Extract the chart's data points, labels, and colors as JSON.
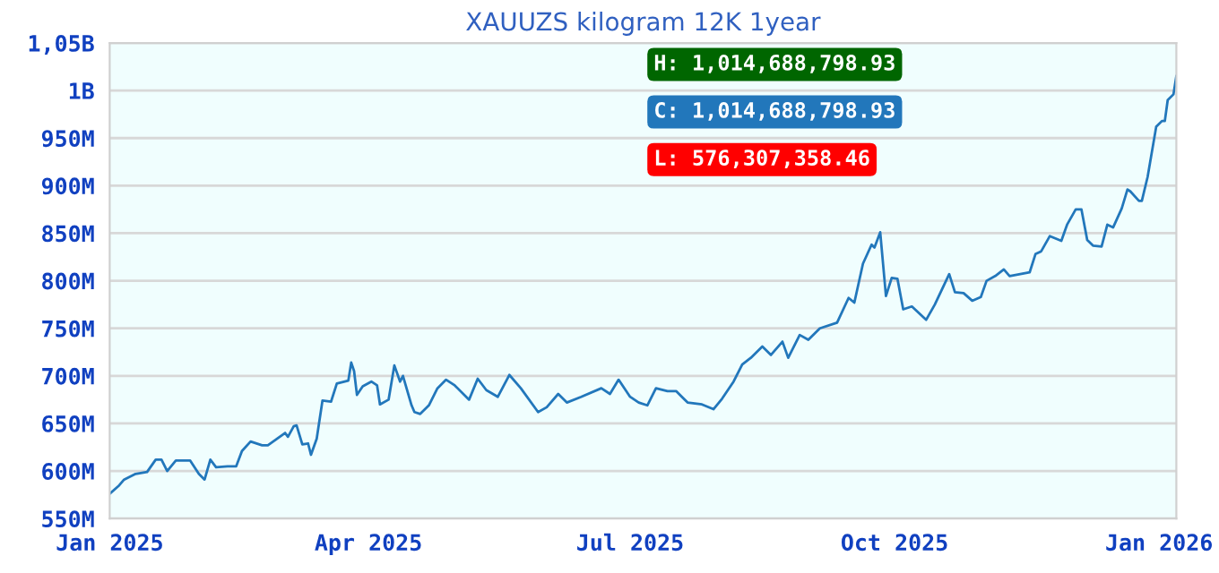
{
  "chart_data": {
    "type": "line",
    "title": "XAUUZS kilogram 12K 1year",
    "x": [
      "2025-01-01",
      "2025-01-04",
      "2025-01-06",
      "2025-01-10",
      "2025-01-14",
      "2025-01-17",
      "2025-01-19",
      "2025-01-21",
      "2025-01-24",
      "2025-01-29",
      "2025-02-01",
      "2025-02-03",
      "2025-02-05",
      "2025-02-07",
      "2025-02-11",
      "2025-02-14",
      "2025-02-16",
      "2025-02-19",
      "2025-02-23",
      "2025-02-25",
      "2025-03-03",
      "2025-03-04",
      "2025-03-06",
      "2025-03-07",
      "2025-03-09",
      "2025-03-11",
      "2025-03-12",
      "2025-03-14",
      "2025-03-16",
      "2025-03-19",
      "2025-03-21",
      "2025-03-25",
      "2025-03-26",
      "2025-03-27",
      "2025-03-28",
      "2025-03-30",
      "2025-04-02",
      "2025-04-04",
      "2025-04-05",
      "2025-04-08",
      "2025-04-10",
      "2025-04-12",
      "2025-04-13",
      "2025-04-16",
      "2025-04-17",
      "2025-04-19",
      "2025-04-22",
      "2025-04-25",
      "2025-04-28",
      "2025-05-01",
      "2025-05-06",
      "2025-05-09",
      "2025-05-12",
      "2025-05-16",
      "2025-05-20",
      "2025-05-24",
      "2025-05-30",
      "2025-06-02",
      "2025-06-06",
      "2025-06-09",
      "2025-06-14",
      "2025-06-21",
      "2025-06-24",
      "2025-06-27",
      "2025-07-01",
      "2025-07-04",
      "2025-07-07",
      "2025-07-10",
      "2025-07-14",
      "2025-07-17",
      "2025-07-21",
      "2025-07-26",
      "2025-07-30",
      "2025-08-02",
      "2025-08-06",
      "2025-08-09",
      "2025-08-12",
      "2025-08-16",
      "2025-08-19",
      "2025-08-23",
      "2025-08-25",
      "2025-08-29",
      "2025-09-01",
      "2025-09-05",
      "2025-09-11",
      "2025-09-15",
      "2025-09-17",
      "2025-09-20",
      "2025-09-23",
      "2025-09-24",
      "2025-09-26",
      "2025-09-28",
      "2025-09-30",
      "2025-10-02",
      "2025-10-04",
      "2025-10-07",
      "2025-10-12",
      "2025-10-15",
      "2025-10-20",
      "2025-10-22",
      "2025-10-25",
      "2025-10-28",
      "2025-10-31",
      "2025-11-02",
      "2025-11-05",
      "2025-11-08",
      "2025-11-10",
      "2025-11-17",
      "2025-11-19",
      "2025-11-21",
      "2025-11-24",
      "2025-11-28",
      "2025-11-30",
      "2025-12-03",
      "2025-12-05",
      "2025-12-07",
      "2025-12-09",
      "2025-12-12",
      "2025-12-14",
      "2025-12-16",
      "2025-12-19",
      "2025-12-21",
      "2025-12-22",
      "2025-12-25",
      "2025-12-26",
      "2025-12-28",
      "2025-12-31",
      "2026-01-02",
      "2026-01-03",
      "2026-01-04",
      "2026-01-06",
      "2026-01-07"
    ],
    "series": [
      {
        "color": "#2277bb",
        "values": [
          576000000,
          584000000,
          591000000,
          597000000,
          599000000,
          612000000,
          612000000,
          600000000,
          611000000,
          611000000,
          597000000,
          591000000,
          612000000,
          604000000,
          605000000,
          605000000,
          621000000,
          631000000,
          627000000,
          627000000,
          640000000,
          636000000,
          647000000,
          648000000,
          628000000,
          629000000,
          617000000,
          634000000,
          674000000,
          673000000,
          692000000,
          695000000,
          714000000,
          705000000,
          680000000,
          689000000,
          694000000,
          690000000,
          670000000,
          675000000,
          711000000,
          694000000,
          700000000,
          669000000,
          662000000,
          660000000,
          669000000,
          687000000,
          696000000,
          690000000,
          675000000,
          697000000,
          685000000,
          678000000,
          701000000,
          687000000,
          662000000,
          667000000,
          681000000,
          672000000,
          678000000,
          687000000,
          681000000,
          696000000,
          678000000,
          672000000,
          669000000,
          687000000,
          684000000,
          684000000,
          672000000,
          670000000,
          665000000,
          676000000,
          694000000,
          712000000,
          719000000,
          731000000,
          722000000,
          736000000,
          719000000,
          743000000,
          738000000,
          750000000,
          756000000,
          782000000,
          777000000,
          818000000,
          838000000,
          835000000,
          851000000,
          784000000,
          803000000,
          802000000,
          770000000,
          773000000,
          759000000,
          775000000,
          807000000,
          788000000,
          787000000,
          779000000,
          783000000,
          800000000,
          805000000,
          812000000,
          805000000,
          809000000,
          828000000,
          831000000,
          847000000,
          842000000,
          859000000,
          875000000,
          875000000,
          843000000,
          837000000,
          836000000,
          859000000,
          856000000,
          876000000,
          896000000,
          894000000,
          884000000,
          884000000,
          909000000,
          962000000,
          968000000,
          968000000,
          990000000,
          996000000,
          1015000000
        ]
      }
    ],
    "xlim": [
      "2025-01-01",
      "2026-01-07"
    ],
    "xticks": [
      {
        "value": "2025-01-01",
        "label": "Jan 2025"
      },
      {
        "value": "2025-04-01",
        "label": "Apr 2025"
      },
      {
        "value": "2025-07-01",
        "label": "Jul 2025"
      },
      {
        "value": "2025-10-01",
        "label": "Oct 2025"
      },
      {
        "value": "2026-01-01",
        "label": "Jan 2026"
      }
    ],
    "ylim": [
      550000000,
      1050000000
    ],
    "yticks": [
      {
        "value": 550000000,
        "label": "550M"
      },
      {
        "value": 600000000,
        "label": "600M"
      },
      {
        "value": 650000000,
        "label": "650M"
      },
      {
        "value": 700000000,
        "label": "700M"
      },
      {
        "value": 750000000,
        "label": "750M"
      },
      {
        "value": 800000000,
        "label": "800M"
      },
      {
        "value": 850000000,
        "label": "850M"
      },
      {
        "value": 900000000,
        "label": "900M"
      },
      {
        "value": 950000000,
        "label": "950M"
      },
      {
        "value": 1000000000,
        "label": "1B"
      },
      {
        "value": 1050000000,
        "label": "1,05B"
      }
    ],
    "grid": "y",
    "marker": "none",
    "line_style": "solid",
    "annotations": [
      "H: 1,014,688,798.93",
      "C: 1,014,688,798.93",
      "L: 576,307,358.46"
    ]
  }
}
